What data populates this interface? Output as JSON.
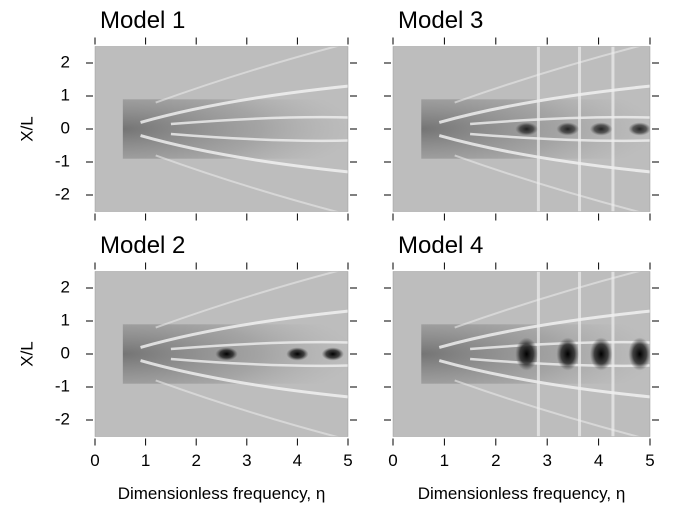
{
  "chart_data": [
    {
      "type": "image",
      "title": "Model 1",
      "ylabel": "X/L",
      "xlim": [
        0,
        5
      ],
      "ylim": [
        -2.5,
        2.5
      ],
      "xticks": [
        0,
        1,
        2,
        3,
        4,
        5
      ],
      "yticks": [
        -2,
        -1,
        0,
        1,
        2
      ]
    },
    {
      "type": "image",
      "title": "Model 3",
      "xlim": [
        0,
        5
      ],
      "ylim": [
        -2.5,
        2.5
      ],
      "xticks": [
        0,
        1,
        2,
        3,
        4,
        5
      ],
      "yticks": [
        -2,
        -1,
        0,
        1,
        2
      ]
    },
    {
      "type": "image",
      "title": "Model 2",
      "ylabel": "X/L",
      "xlabel": "Dimensionless frequency, η",
      "xlim": [
        0,
        5
      ],
      "ylim": [
        -2.5,
        2.5
      ],
      "xticks": [
        0,
        1,
        2,
        3,
        4,
        5
      ],
      "yticks": [
        -2,
        -1,
        0,
        1,
        2
      ]
    },
    {
      "type": "image",
      "title": "Model 4",
      "xlabel": "Dimensionless frequency, η",
      "xlim": [
        0,
        5
      ],
      "ylim": [
        -2.5,
        2.5
      ],
      "xticks": [
        0,
        1,
        2,
        3,
        4,
        5
      ],
      "yticks": [
        -2,
        -1,
        0,
        1,
        2
      ]
    }
  ]
}
